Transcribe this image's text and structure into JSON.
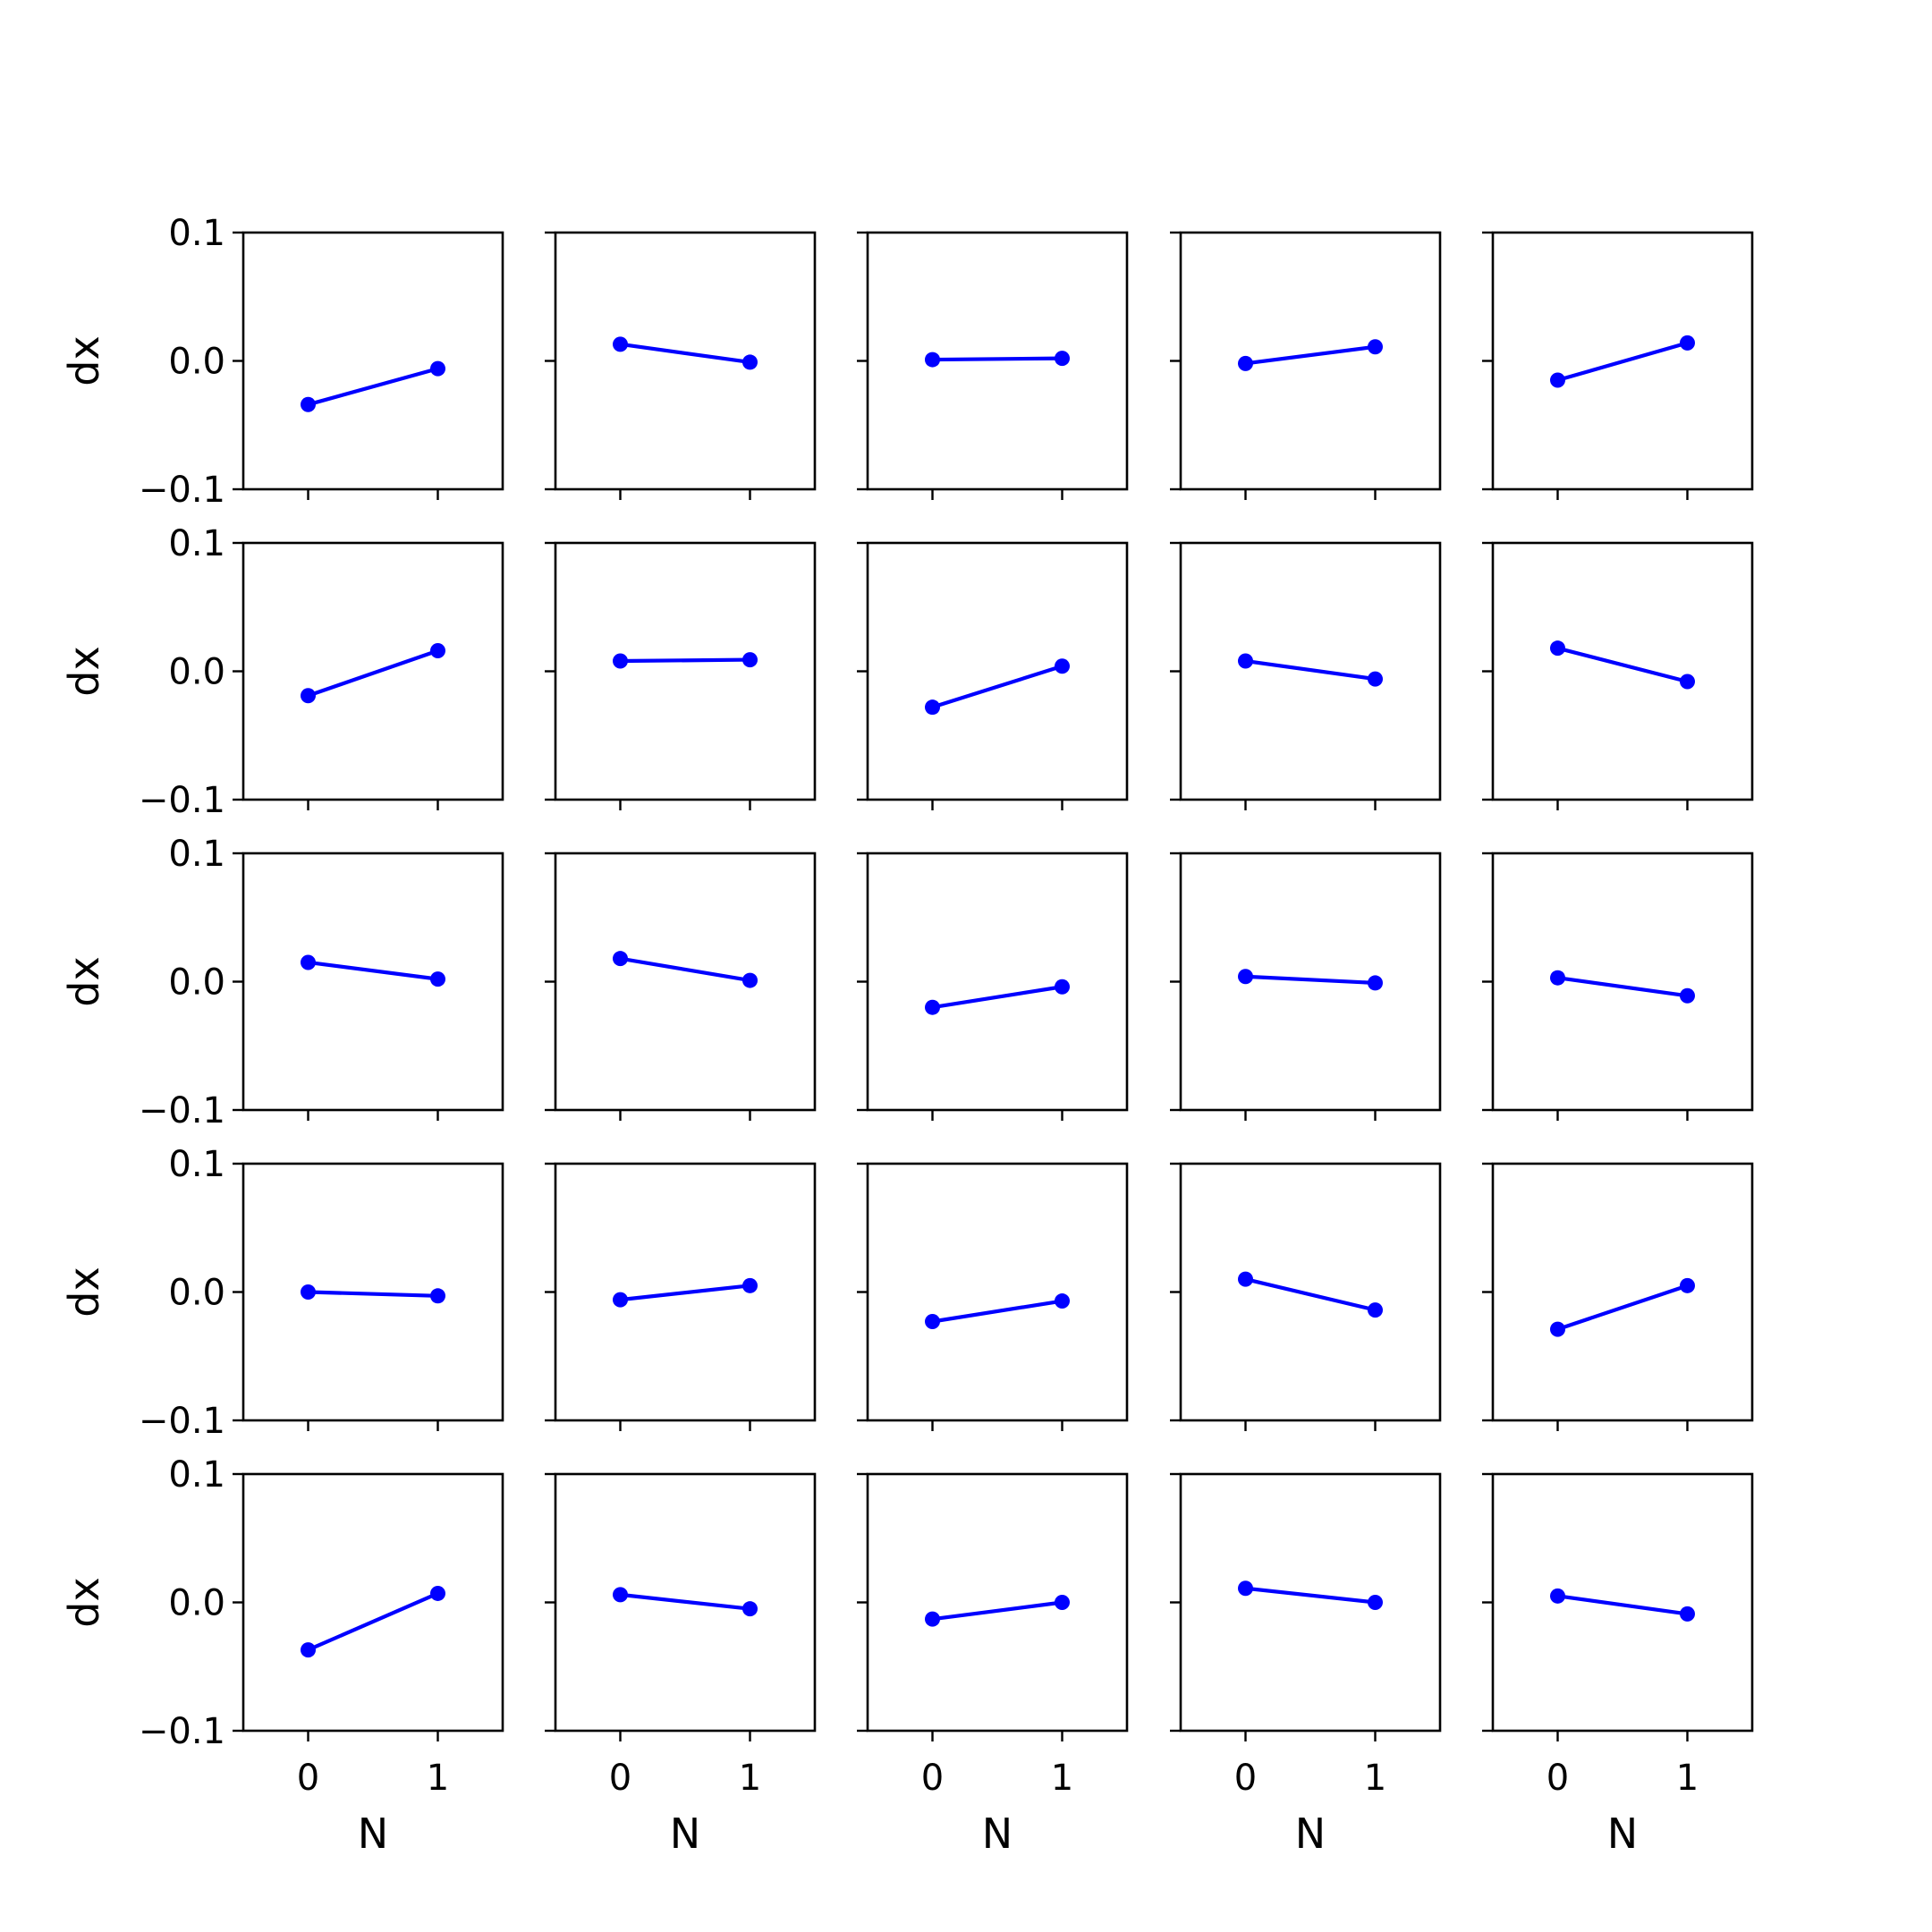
{
  "chart_data": {
    "type": "line",
    "layout": "5x5 grid of small multiples",
    "shared_axes": true,
    "xlabel": "N",
    "ylabel": "dx",
    "x": [
      0,
      1
    ],
    "x_ticks": [
      0,
      1
    ],
    "xlim": [
      -0.5,
      1.5
    ],
    "ylim": [
      -0.1,
      0.1
    ],
    "y_ticks": [
      0.1,
      0.0,
      -0.1
    ],
    "y_tick_labels": [
      "0.1",
      "0.0",
      "−0.1"
    ],
    "x_tick_labels": [
      "0",
      "1"
    ],
    "line_color": "#0000ff",
    "marker": "circle",
    "grid": false,
    "panels": [
      [
        [
          -0.034,
          -0.006
        ],
        [
          0.013,
          -0.001
        ],
        [
          0.001,
          0.002
        ],
        [
          -0.002,
          0.011
        ],
        [
          -0.015,
          0.014
        ]
      ],
      [
        [
          -0.019,
          0.016
        ],
        [
          0.008,
          0.009
        ],
        [
          -0.028,
          0.004
        ],
        [
          0.008,
          -0.006
        ],
        [
          0.018,
          -0.008
        ]
      ],
      [
        [
          0.015,
          0.002
        ],
        [
          0.018,
          0.001
        ],
        [
          -0.02,
          -0.004
        ],
        [
          0.004,
          -0.001
        ],
        [
          0.003,
          -0.011
        ]
      ],
      [
        [
          0.0,
          -0.003
        ],
        [
          -0.006,
          0.005
        ],
        [
          -0.023,
          -0.007
        ],
        [
          0.01,
          -0.014
        ],
        [
          -0.029,
          0.005
        ]
      ],
      [
        [
          -0.037,
          0.007
        ],
        [
          0.006,
          -0.005
        ],
        [
          -0.013,
          0.0
        ],
        [
          0.011,
          0.0
        ],
        [
          0.005,
          -0.009
        ]
      ]
    ]
  }
}
